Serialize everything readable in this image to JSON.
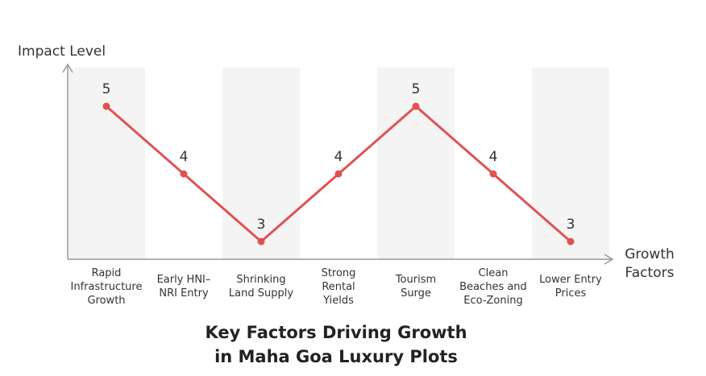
{
  "chart_data": {
    "type": "line",
    "title": "Key Factors Driving Growth in Maha Goa Luxury Plots",
    "title_lines": [
      "Key Factors Driving Growth",
      "in Maha Goa Luxury Plots"
    ],
    "ylabel": "Impact Level",
    "xlabel": "Growth Factors",
    "xlabel_lines": [
      "Growth",
      "Factors"
    ],
    "categories": [
      "Rapid Infrastructure Growth",
      "Early HNI-NRI Entry",
      "Shrinking Land Supply",
      "Strong Rental Yields",
      "Tourism Surge",
      "Clean Beaches and Eco-Zoning",
      "Lower Entry Prices"
    ],
    "category_lines": [
      [
        "Rapid",
        "Infrastructure",
        "Growth"
      ],
      [
        "Early HNI–",
        "NRI Entry"
      ],
      [
        "Shrinking",
        "Land Supply"
      ],
      [
        "Strong",
        "Rental",
        "Yields"
      ],
      [
        "Tourism",
        "Surge"
      ],
      [
        "Clean",
        "Beaches and",
        "Eco-Zoning"
      ],
      [
        "Lower Entry",
        "Prices"
      ]
    ],
    "values": [
      5,
      4,
      3,
      4,
      5,
      4,
      3
    ],
    "ylim": [
      2,
      6
    ],
    "grid": false,
    "alternating_bands": true,
    "line_color": "#e05252",
    "band_color": "#f4f4f4",
    "axis_color": "#999999"
  }
}
